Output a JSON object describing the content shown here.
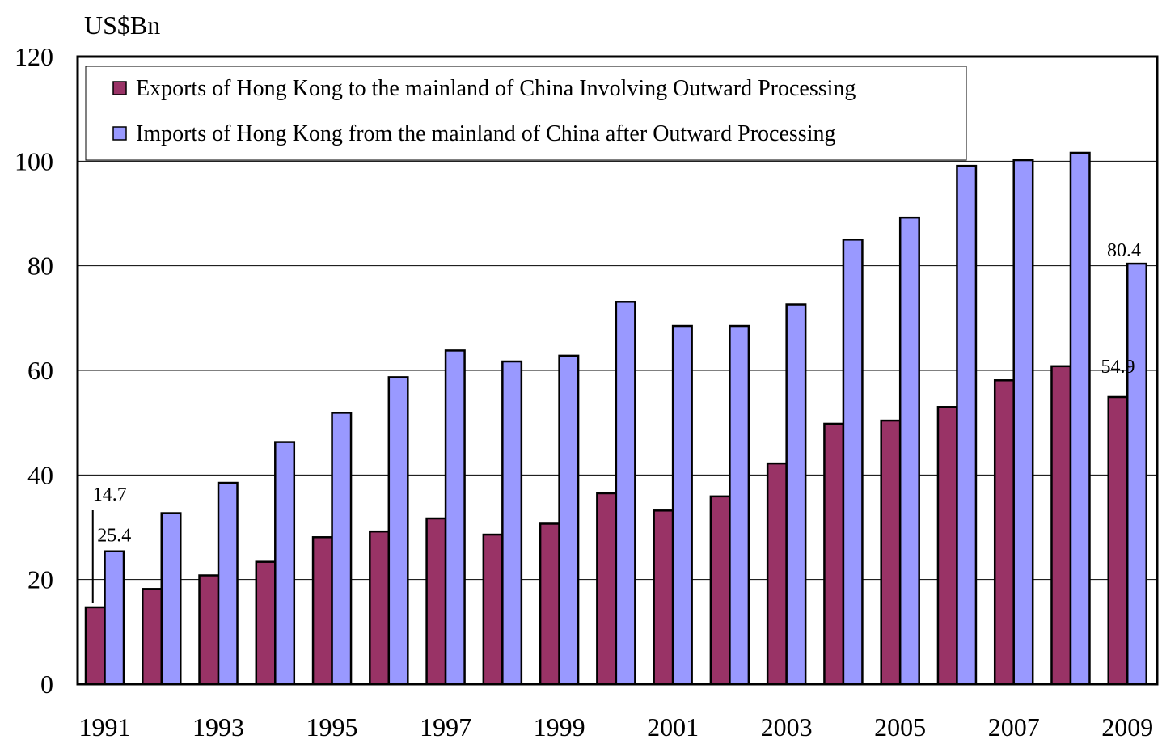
{
  "chart_data": {
    "type": "bar",
    "title": "",
    "xlabel": "",
    "ylabel": "US$Bn",
    "ylim": [
      0,
      120
    ],
    "yticks": [
      "0",
      "20",
      "40",
      "60",
      "80",
      "100",
      "120"
    ],
    "grid": true,
    "legend_position": "top-left",
    "categories": [
      "1991",
      "1992",
      "1993",
      "1994",
      "1995",
      "1996",
      "1997",
      "1998",
      "1999",
      "2000",
      "2001",
      "2002",
      "2003",
      "2004",
      "2005",
      "2006",
      "2007",
      "2008",
      "2009"
    ],
    "x_tick_labels": [
      "1991",
      "",
      "1993",
      "",
      "1995",
      "",
      "1997",
      "",
      "1999",
      "",
      "2001",
      "",
      "2003",
      "",
      "2005",
      "",
      "2007",
      "",
      "2009"
    ],
    "series": [
      {
        "name": "Exports of Hong Kong to the mainland of China Involving Outward Processing",
        "color": "#993366",
        "values": [
          14.7,
          18.2,
          20.8,
          23.4,
          28.1,
          29.2,
          31.7,
          28.6,
          30.7,
          36.5,
          33.2,
          35.9,
          42.2,
          49.8,
          50.4,
          53.0,
          58.1,
          60.8,
          54.9
        ]
      },
      {
        "name": "Imports of Hong Kong from the mainland of China after Outward Processing",
        "color": "#9999ff",
        "values": [
          25.4,
          32.7,
          38.5,
          46.3,
          51.9,
          58.7,
          63.8,
          61.7,
          62.8,
          73.1,
          68.5,
          68.5,
          72.6,
          85.0,
          89.2,
          99.1,
          100.2,
          101.6,
          80.4
        ]
      }
    ],
    "annotations": [
      {
        "text": "14.7",
        "series": 0,
        "category": "1991"
      },
      {
        "text": "25.4",
        "series": 1,
        "category": "1991"
      },
      {
        "text": "54.9",
        "series": 0,
        "category": "2009"
      },
      {
        "text": "80.4",
        "series": 1,
        "category": "2009"
      }
    ]
  }
}
